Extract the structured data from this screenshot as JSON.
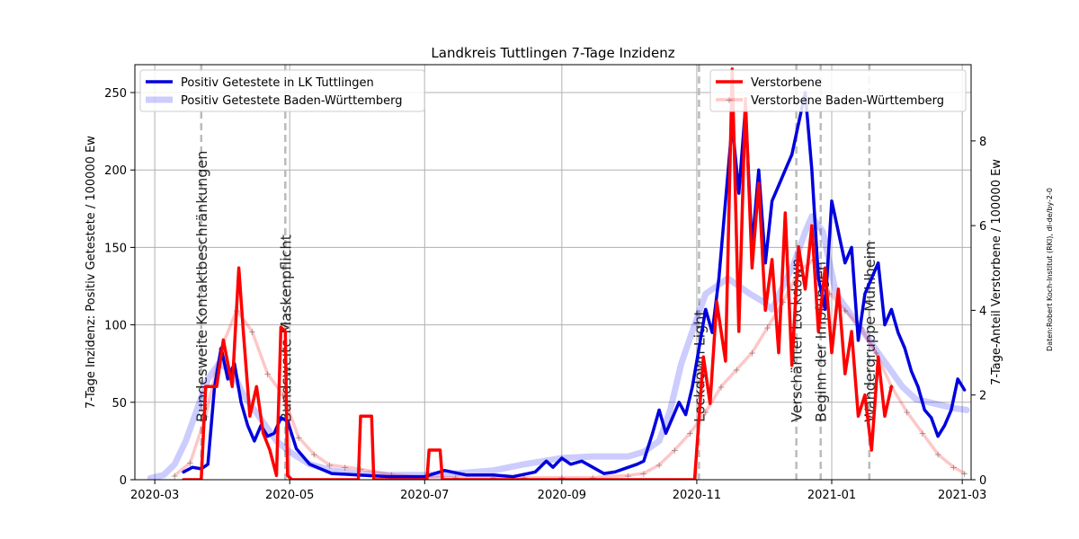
{
  "chart_data": {
    "type": "line",
    "title": "Landkreis Tuttlingen 7-Tage Inzidenz",
    "ylabel_left": "7-Tage Inzidenz: Positiv Getestete / 100000 Ew",
    "ylabel_right": "7-Tage-Anteil Verstorbene / 100000 Ew",
    "source_note": "Daten:Robert Koch-Institut (RKI), dl-de/by-2-0",
    "xlim": [
      "2020-02-21",
      "2021-03-05"
    ],
    "ylim_left": [
      0,
      268
    ],
    "ylim_right": [
      0,
      9.8
    ],
    "x_ticks": [
      {
        "date": "2020-03-01",
        "label": "2020-03"
      },
      {
        "date": "2020-05-01",
        "label": "2020-05"
      },
      {
        "date": "2020-07-01",
        "label": "2020-07"
      },
      {
        "date": "2020-09-01",
        "label": "2020-09"
      },
      {
        "date": "2020-11-01",
        "label": "2020-11"
      },
      {
        "date": "2021-01-01",
        "label": "2021-01"
      },
      {
        "date": "2021-03-01",
        "label": "2021-03"
      }
    ],
    "y_ticks_left": [
      0,
      50,
      100,
      150,
      200,
      250
    ],
    "y_ticks_right": [
      0,
      2,
      4,
      6,
      8
    ],
    "grid": true,
    "legend_left_position": "upper-left",
    "legend_right_position": "upper-right",
    "annotations": [
      {
        "date": "2020-03-22",
        "text": "Bundesweite Kontaktbeschränkungen"
      },
      {
        "date": "2020-04-29",
        "text": "Bundsweite Maskenpflicht"
      },
      {
        "date": "2020-11-02",
        "text": "Lockdown Light"
      },
      {
        "date": "2020-12-16",
        "text": "Verschärfter Lockdown"
      },
      {
        "date": "2020-12-27",
        "text": "Beginn der Impfungen"
      },
      {
        "date": "2021-01-18",
        "text": "Wandergruppe Mühlheim"
      }
    ],
    "series": [
      {
        "name": "Positiv Getestete in LK Tuttlingen",
        "axis": "left",
        "color": "#0000dd",
        "width": 3.5,
        "opacity": 1,
        "x": [
          "2020-03-14",
          "2020-03-18",
          "2020-03-22",
          "2020-03-25",
          "2020-03-28",
          "2020-03-31",
          "2020-04-03",
          "2020-04-06",
          "2020-04-09",
          "2020-04-12",
          "2020-04-15",
          "2020-04-18",
          "2020-04-21",
          "2020-04-24",
          "2020-04-27",
          "2020-04-30",
          "2020-05-04",
          "2020-05-10",
          "2020-05-20",
          "2020-06-01",
          "2020-06-15",
          "2020-07-01",
          "2020-07-10",
          "2020-07-20",
          "2020-08-01",
          "2020-08-10",
          "2020-08-20",
          "2020-08-25",
          "2020-08-28",
          "2020-09-01",
          "2020-09-05",
          "2020-09-10",
          "2020-09-15",
          "2020-09-20",
          "2020-09-25",
          "2020-10-01",
          "2020-10-05",
          "2020-10-08",
          "2020-10-12",
          "2020-10-15",
          "2020-10-18",
          "2020-10-21",
          "2020-10-24",
          "2020-10-27",
          "2020-10-30",
          "2020-11-02",
          "2020-11-05",
          "2020-11-08",
          "2020-11-11",
          "2020-11-14",
          "2020-11-17",
          "2020-11-20",
          "2020-11-23",
          "2020-11-26",
          "2020-11-29",
          "2020-12-02",
          "2020-12-05",
          "2020-12-08",
          "2020-12-11",
          "2020-12-14",
          "2020-12-17",
          "2020-12-20",
          "2020-12-23",
          "2020-12-26",
          "2020-12-29",
          "2021-01-01",
          "2021-01-04",
          "2021-01-07",
          "2021-01-10",
          "2021-01-13",
          "2021-01-16",
          "2021-01-19",
          "2021-01-22",
          "2021-01-25",
          "2021-01-28",
          "2021-01-31",
          "2021-02-03",
          "2021-02-06",
          "2021-02-09",
          "2021-02-12",
          "2021-02-15",
          "2021-02-18",
          "2021-02-21",
          "2021-02-24",
          "2021-02-27",
          "2021-03-02"
        ],
        "y": [
          5,
          8,
          7,
          10,
          60,
          85,
          65,
          75,
          50,
          35,
          25,
          35,
          28,
          30,
          40,
          38,
          20,
          10,
          4,
          3,
          2,
          2,
          6,
          3,
          3,
          2,
          5,
          12,
          8,
          14,
          10,
          12,
          8,
          4,
          5,
          8,
          10,
          12,
          30,
          45,
          30,
          40,
          50,
          42,
          60,
          85,
          110,
          95,
          130,
          180,
          230,
          185,
          240,
          150,
          200,
          140,
          180,
          190,
          200,
          210,
          230,
          250,
          200,
          130,
          110,
          180,
          160,
          140,
          150,
          90,
          120,
          130,
          140,
          100,
          110,
          95,
          85,
          70,
          60,
          45,
          40,
          28,
          35,
          45,
          65,
          58
        ]
      },
      {
        "name": "Positiv Getestete Baden-Württemberg",
        "axis": "left",
        "color": "#0000ff",
        "width": 7,
        "opacity": 0.2,
        "x": [
          "2020-02-28",
          "2020-03-05",
          "2020-03-10",
          "2020-03-15",
          "2020-03-20",
          "2020-03-25",
          "2020-03-30",
          "2020-04-05",
          "2020-04-10",
          "2020-04-15",
          "2020-04-20",
          "2020-04-25",
          "2020-05-01",
          "2020-05-10",
          "2020-05-20",
          "2020-06-01",
          "2020-06-15",
          "2020-07-01",
          "2020-07-15",
          "2020-08-01",
          "2020-08-15",
          "2020-09-01",
          "2020-09-15",
          "2020-10-01",
          "2020-10-08",
          "2020-10-15",
          "2020-10-20",
          "2020-10-25",
          "2020-10-31",
          "2020-11-05",
          "2020-11-10",
          "2020-11-15",
          "2020-11-20",
          "2020-11-25",
          "2020-12-01",
          "2020-12-05",
          "2020-12-10",
          "2020-12-15",
          "2020-12-20",
          "2020-12-23",
          "2020-12-28",
          "2021-01-03",
          "2021-01-08",
          "2021-01-13",
          "2021-01-18",
          "2021-01-23",
          "2021-01-28",
          "2021-02-02",
          "2021-02-08",
          "2021-02-14",
          "2021-02-20",
          "2021-02-26",
          "2021-03-03"
        ],
        "y": [
          1,
          3,
          10,
          25,
          45,
          65,
          75,
          70,
          55,
          45,
          35,
          25,
          18,
          10,
          6,
          4,
          3,
          3,
          4,
          6,
          10,
          14,
          15,
          15,
          18,
          25,
          45,
          75,
          100,
          120,
          125,
          130,
          125,
          120,
          115,
          110,
          125,
          140,
          160,
          170,
          160,
          120,
          110,
          100,
          90,
          80,
          70,
          60,
          52,
          50,
          48,
          46,
          45
        ]
      },
      {
        "name": "Verstorbene",
        "axis": "right",
        "color": "#ff0000",
        "width": 3.5,
        "opacity": 1,
        "x": [
          "2020-03-14",
          "2020-03-22",
          "2020-03-24",
          "2020-03-29",
          "2020-04-01",
          "2020-04-05",
          "2020-04-08",
          "2020-04-10",
          "2020-04-13",
          "2020-04-16",
          "2020-04-19",
          "2020-04-22",
          "2020-04-25",
          "2020-04-27",
          "2020-04-29",
          "2020-04-30",
          "2020-05-02",
          "2020-06-01",
          "2020-06-02",
          "2020-06-07",
          "2020-06-08",
          "2020-07-02",
          "2020-07-03",
          "2020-07-08",
          "2020-07-09",
          "2020-10-31",
          "2020-11-04",
          "2020-11-07",
          "2020-11-10",
          "2020-11-14",
          "2020-11-17",
          "2020-11-20",
          "2020-11-23",
          "2020-11-26",
          "2020-11-29",
          "2020-12-02",
          "2020-12-05",
          "2020-12-08",
          "2020-12-11",
          "2020-12-14",
          "2020-12-17",
          "2020-12-20",
          "2020-12-23",
          "2020-12-26",
          "2020-12-29",
          "2021-01-01",
          "2021-01-04",
          "2021-01-07",
          "2021-01-10",
          "2021-01-13",
          "2021-01-16",
          "2021-01-19",
          "2021-01-22",
          "2021-01-25",
          "2021-01-28"
        ],
        "y": [
          0,
          0,
          2.2,
          2.2,
          3.3,
          2.2,
          5,
          3.5,
          1.5,
          2.2,
          1.1,
          0.7,
          0.1,
          3.6,
          3.5,
          0.1,
          0,
          0,
          1.5,
          1.5,
          0,
          0,
          0.7,
          0.7,
          0,
          0,
          2.9,
          1.8,
          4.2,
          2.8,
          9.7,
          3.5,
          9,
          5,
          7,
          4,
          5.2,
          3,
          6.3,
          2.7,
          5.5,
          4.5,
          6,
          3.5,
          5,
          3,
          4.5,
          2.5,
          3.5,
          1.5,
          2,
          0.7,
          2.9,
          1.5,
          2.2
        ]
      },
      {
        "name": "Verstorbene Baden-Württemberg",
        "axis": "right",
        "color": "#ff0000",
        "width": 3.5,
        "opacity": 0.22,
        "markers": true,
        "x": [
          "2020-03-10",
          "2020-03-17",
          "2020-03-24",
          "2020-03-31",
          "2020-04-07",
          "2020-04-14",
          "2020-04-21",
          "2020-04-28",
          "2020-05-05",
          "2020-05-12",
          "2020-05-19",
          "2020-05-26",
          "2020-06-02",
          "2020-06-16",
          "2020-07-01",
          "2020-07-15",
          "2020-08-01",
          "2020-08-15",
          "2020-09-01",
          "2020-09-15",
          "2020-10-01",
          "2020-10-08",
          "2020-10-15",
          "2020-10-22",
          "2020-10-29",
          "2020-11-05",
          "2020-11-12",
          "2020-11-19",
          "2020-11-26",
          "2020-12-03",
          "2020-12-10",
          "2020-12-17",
          "2020-12-24",
          "2020-12-31",
          "2021-01-07",
          "2021-01-14",
          "2021-01-21",
          "2021-01-28",
          "2021-02-04",
          "2021-02-11",
          "2021-02-18",
          "2021-02-25",
          "2021-03-02"
        ],
        "y": [
          0.1,
          0.4,
          1.5,
          3.1,
          4,
          3.5,
          2.5,
          2,
          1,
          0.6,
          0.35,
          0.3,
          0.25,
          0.12,
          0.05,
          0.05,
          0.05,
          0.05,
          0.05,
          0.05,
          0.1,
          0.15,
          0.35,
          0.7,
          1.1,
          1.6,
          2.2,
          2.6,
          3,
          3.6,
          4.2,
          4.9,
          5.2,
          4.4,
          4,
          3.6,
          3,
          2.2,
          1.6,
          1.1,
          0.6,
          0.3,
          0.15
        ]
      }
    ]
  }
}
